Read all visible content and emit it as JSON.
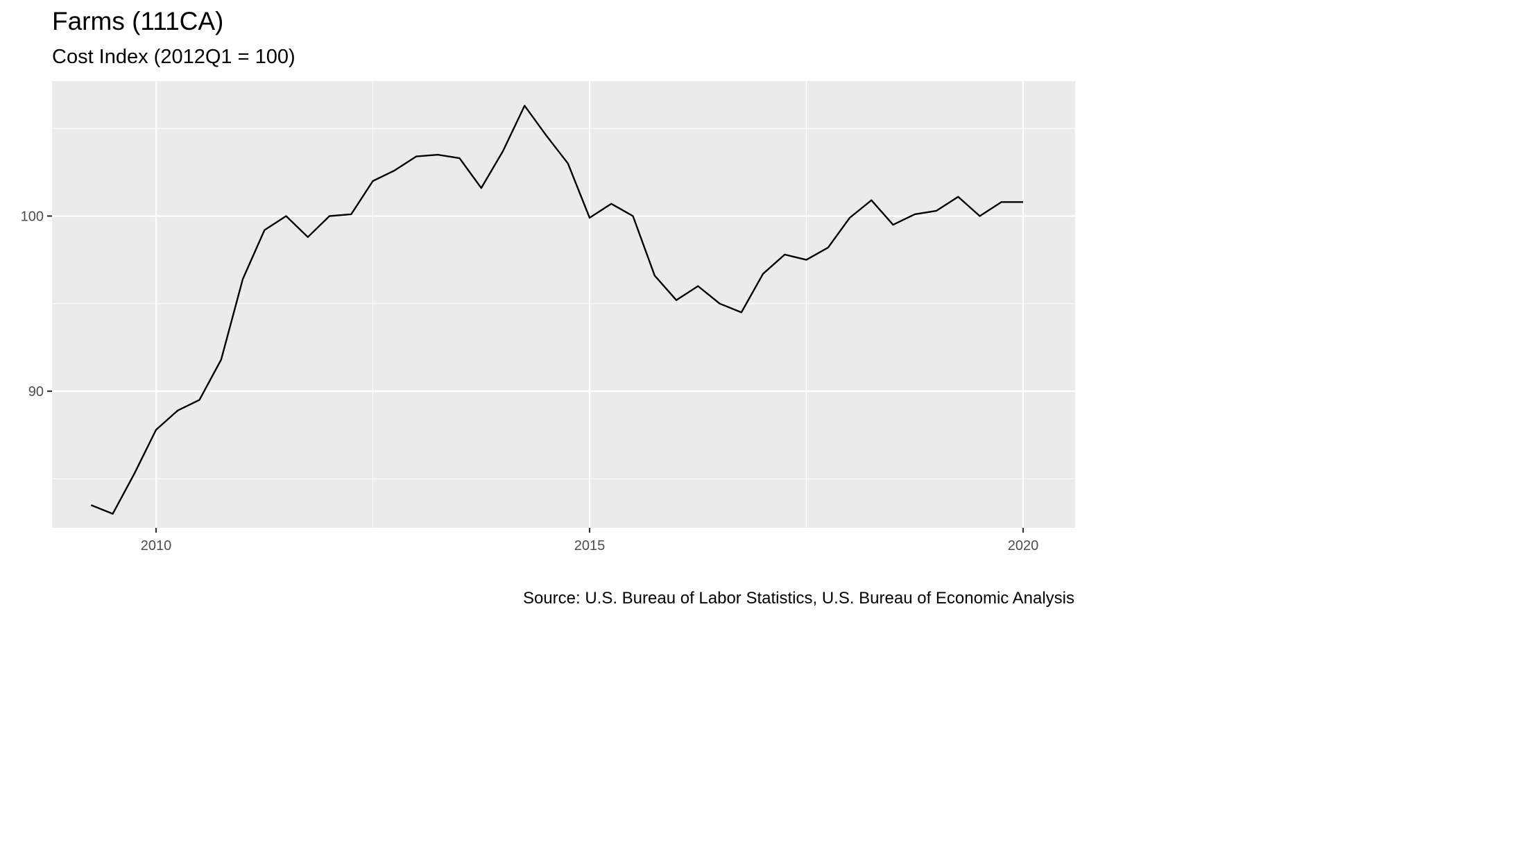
{
  "title": "Farms (111CA)",
  "subtitle": "Cost Index (2012Q1 = 100)",
  "caption": "Source: U.S. Bureau of Labor Statistics, U.S. Bureau of Economic Analysis",
  "colors": {
    "panel": "#ebebeb",
    "grid": "#ffffff",
    "line": "#000000",
    "tick_text": "#4d4d4d"
  },
  "chart_data": {
    "type": "line",
    "title": "Farms (111CA)",
    "subtitle": "Cost Index (2012Q1 = 100)",
    "xlabel": "",
    "ylabel": "",
    "xlim": [
      2008.8,
      2020.6
    ],
    "ylim": [
      82.2,
      107.7
    ],
    "x_ticks": [
      2010,
      2015,
      2020
    ],
    "x_tick_labels": [
      "2010",
      "2015",
      "2020"
    ],
    "y_ticks": [
      90,
      100
    ],
    "y_tick_labels": [
      "90",
      "100"
    ],
    "grid": true,
    "legend": "none",
    "series": [
      {
        "x": [
          2009.25,
          2009.5,
          2009.75,
          2010.0,
          2010.25,
          2010.5,
          2010.75,
          2011.0,
          2011.25,
          2011.5,
          2011.75,
          2012.0,
          2012.25,
          2012.5,
          2012.75,
          2013.0,
          2013.25,
          2013.5,
          2013.75,
          2014.0,
          2014.25,
          2014.5,
          2014.75,
          2015.0,
          2015.25,
          2015.5,
          2015.75,
          2016.0,
          2016.25,
          2016.5,
          2016.75,
          2017.0,
          2017.25,
          2017.5,
          2017.75,
          2018.0,
          2018.25,
          2018.5,
          2018.75,
          2019.0,
          2019.25,
          2019.5,
          2019.75,
          2020.0
        ],
        "values": [
          83.5,
          83.0,
          85.3,
          87.8,
          88.9,
          89.5,
          91.8,
          96.4,
          99.2,
          100.0,
          98.8,
          100.0,
          100.1,
          102.0,
          102.6,
          103.4,
          103.5,
          103.3,
          101.6,
          103.7,
          106.3,
          104.6,
          103.0,
          99.9,
          100.7,
          100.0,
          96.6,
          95.2,
          96.0,
          95.0,
          94.5,
          96.7,
          97.8,
          97.5,
          98.2,
          99.9,
          100.9,
          99.5,
          100.1,
          100.3,
          101.1,
          100.0,
          100.8,
          100.8
        ]
      }
    ]
  }
}
